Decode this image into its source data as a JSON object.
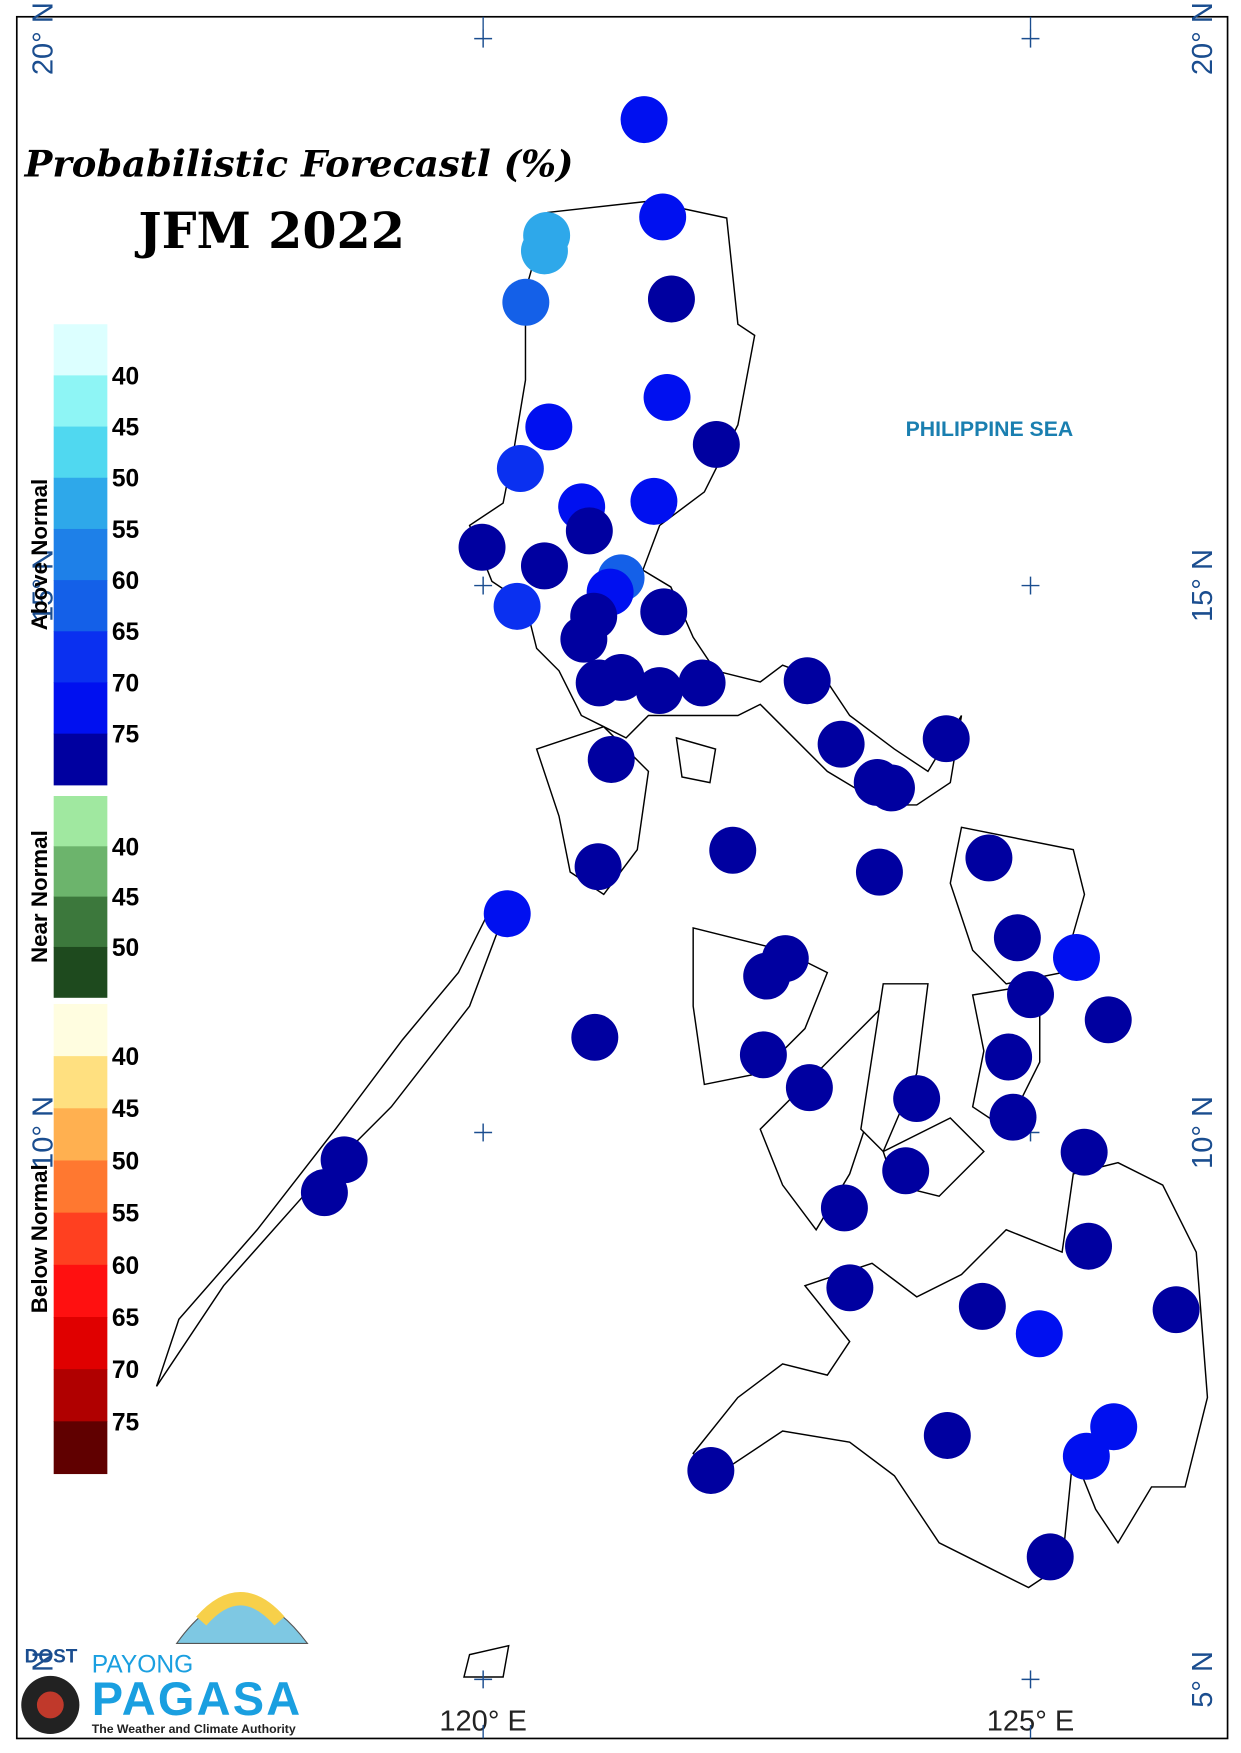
{
  "chart_data": {
    "type": "map",
    "title": "Probabilistic Forecastl (%)",
    "subtitle": "JFM 2022",
    "annotation": "PHILIPPINE SEA",
    "xlim": [
      115.74,
      126.8
    ],
    "ylim": [
      4.46,
      20.2
    ],
    "xticks": [
      {
        "value": 120,
        "label": "120° E"
      },
      {
        "value": 125,
        "label": "125° E"
      }
    ],
    "yticks": [
      {
        "value": 20,
        "label": "20° N"
      },
      {
        "value": 15,
        "label": "15° N"
      },
      {
        "value": 10,
        "label": "10° N"
      },
      {
        "value": 5,
        "label": "5° N"
      }
    ],
    "legend": [
      {
        "name": "Above Normal",
        "colors": [
          "#dcffff",
          "#8ef5f5",
          "#50d8f0",
          "#2ea8ea",
          "#1e80e8",
          "#1460e8",
          "#0a30f0",
          "#0010f0",
          "#0000a0"
        ],
        "ticks": [
          40,
          45,
          50,
          55,
          60,
          65,
          70,
          75
        ]
      },
      {
        "name": "Near Normal",
        "colors": [
          "#a0e8a0",
          "#6cb46c",
          "#3c783c",
          "#1e4a1e"
        ],
        "ticks": [
          40,
          45,
          50
        ]
      },
      {
        "name": "Below Normal",
        "colors": [
          "#fffde0",
          "#ffe080",
          "#ffb050",
          "#ff7830",
          "#ff4020",
          "#ff1010",
          "#e00000",
          "#b00000",
          "#600000"
        ],
        "ticks": [
          40,
          45,
          50,
          55,
          60,
          65,
          70,
          75
        ]
      }
    ],
    "stations": {
      "lon": [
        121.47,
        121.64,
        120.58,
        120.56,
        120.39,
        121.72,
        121.68,
        120.6,
        122.13,
        120.34,
        120.9,
        121.56,
        120.97,
        119.99,
        120.56,
        121.26,
        121.16,
        120.31,
        121.65,
        121.01,
        120.92,
        121.06,
        121.26,
        121.61,
        122.0,
        122.96,
        124.23,
        123.27,
        123.6,
        123.73,
        121.17,
        122.28,
        124.62,
        121.05,
        123.62,
        120.22,
        124.88,
        125.42,
        122.76,
        122.59,
        125.0,
        125.71,
        121.02,
        122.56,
        124.8,
        122.98,
        123.96,
        124.84,
        125.49,
        123.86,
        118.73,
        118.55,
        123.3,
        125.53,
        123.35,
        124.56,
        126.33,
        125.08,
        125.76,
        125.51,
        124.24,
        122.08,
        125.18
      ],
      "lat": [
        19.26,
        18.37,
        18.2,
        18.06,
        17.59,
        17.62,
        16.72,
        16.45,
        16.29,
        16.07,
        15.72,
        15.77,
        15.5,
        15.35,
        15.18,
        15.07,
        14.94,
        14.81,
        14.76,
        14.72,
        14.51,
        14.11,
        14.16,
        14.04,
        14.11,
        14.13,
        13.6,
        13.55,
        13.2,
        13.15,
        13.41,
        12.58,
        12.51,
        12.43,
        12.38,
        12.0,
        11.78,
        11.6,
        11.59,
        11.43,
        11.26,
        11.03,
        10.87,
        10.71,
        10.69,
        10.41,
        10.31,
        10.14,
        9.82,
        9.65,
        9.75,
        9.45,
        9.31,
        8.96,
        8.58,
        8.41,
        8.38,
        8.16,
        7.31,
        7.04,
        7.23,
        6.91,
        6.12
      ],
      "values": [
        70,
        70,
        50,
        50,
        60,
        75,
        70,
        70,
        75,
        65,
        70,
        70,
        75,
        75,
        75,
        60,
        70,
        65,
        75,
        75,
        75,
        75,
        75,
        75,
        75,
        75,
        75,
        75,
        75,
        75,
        75,
        75,
        75,
        75,
        75,
        70,
        75,
        70,
        75,
        75,
        75,
        75,
        75,
        75,
        75,
        75,
        75,
        75,
        75,
        75,
        75,
        75,
        75,
        75,
        75,
        75,
        75,
        70,
        70,
        70,
        75,
        75,
        75
      ]
    },
    "logo": {
      "agency": "DOST",
      "line1": "PAYONG",
      "line2": "PAGASA",
      "tagline": "The Weather and Climate Authority"
    }
  }
}
